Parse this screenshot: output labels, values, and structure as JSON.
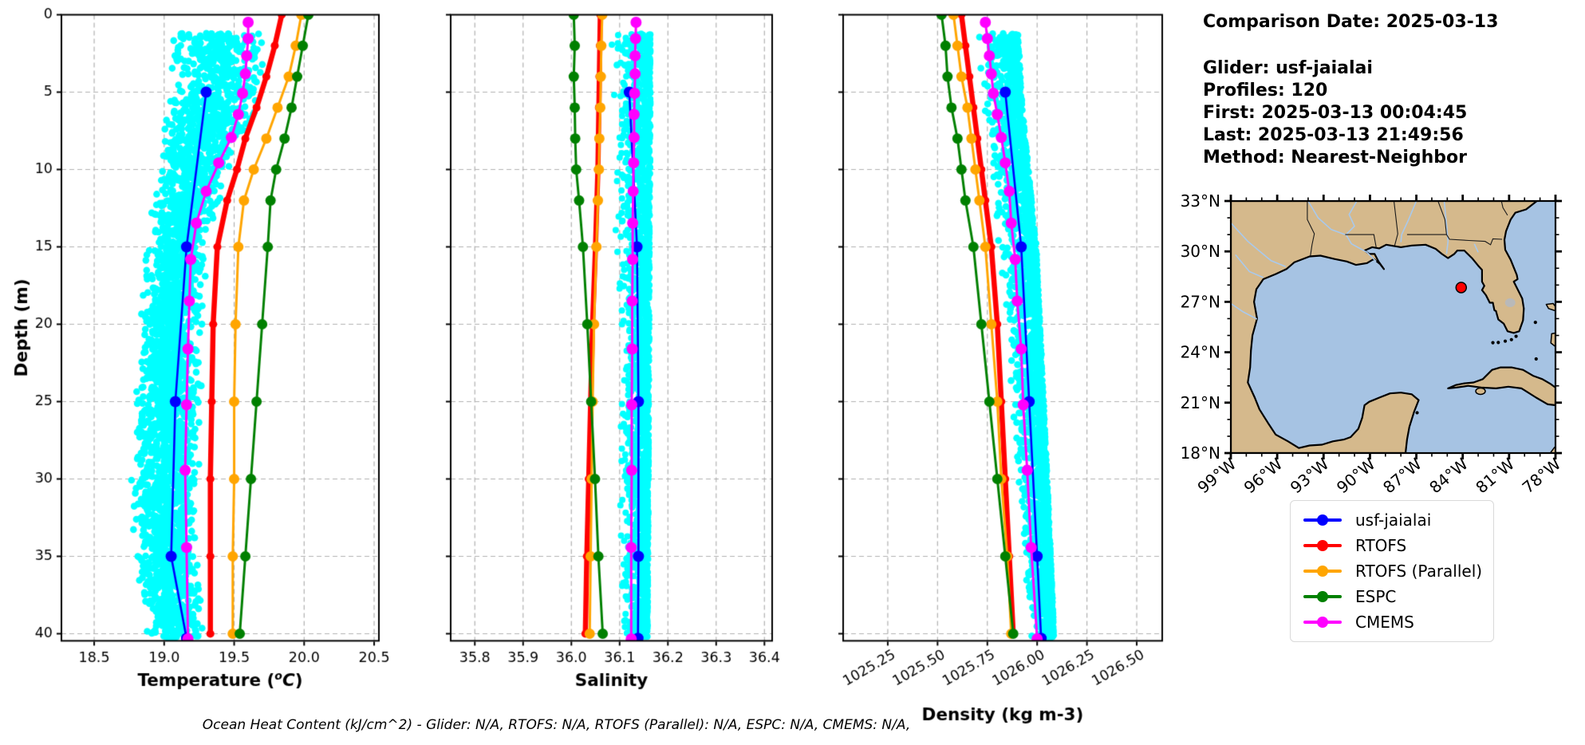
{
  "info_panel": {
    "title": "Comparison Date: 2025-03-13",
    "lines": [
      "Glider: usf-jaialai",
      "Profiles: 120",
      "First: 2025-03-13 00:04:45",
      "Last: 2025-03-13 21:49:56",
      "Method: Nearest-Neighbor"
    ]
  },
  "footer": {
    "text": "Ocean Heat Content (kJ/cm^2) - Glider: N/A,  RTOFS: N/A,  RTOFS (Parallel): N/A,  ESPC: N/A,  CMEMS: N/A,"
  },
  "legend": {
    "items": [
      {
        "label": "usf-jaialai",
        "color": "#0000ff"
      },
      {
        "label": "RTOFS",
        "color": "#ff0000"
      },
      {
        "label": "RTOFS (Parallel)",
        "color": "#ffa500"
      },
      {
        "label": "ESPC",
        "color": "#008000"
      },
      {
        "label": "CMEMS",
        "color": "#ff00ff"
      }
    ]
  },
  "map": {
    "extent": {
      "west_lon": -99,
      "east_lon": -78,
      "south_lat": 18,
      "north_lat": 33
    },
    "lat_ticks": [
      {
        "label": "33°N",
        "value": 33
      },
      {
        "label": "30°N",
        "value": 30
      },
      {
        "label": "27°N",
        "value": 27
      },
      {
        "label": "24°N",
        "value": 24
      },
      {
        "label": "21°N",
        "value": 21
      },
      {
        "label": "18°N",
        "value": 18
      }
    ],
    "lon_ticks": [
      {
        "label": "99°W",
        "value": -99
      },
      {
        "label": "96°W",
        "value": -96
      },
      {
        "label": "93°W",
        "value": -93
      },
      {
        "label": "90°W",
        "value": -90
      },
      {
        "label": "87°W",
        "value": -87
      },
      {
        "label": "84°W",
        "value": -84
      },
      {
        "label": "81°W",
        "value": -81
      },
      {
        "label": "78°W",
        "value": -78
      }
    ],
    "marker": {
      "lon": -84.1,
      "lat": 27.85,
      "color": "#ff0000"
    },
    "land_color": "#d5b98c",
    "ocean_color": "#a6c3e3",
    "lake_color": "#b9b9b9"
  },
  "chart_data": [
    {
      "type": "line",
      "title": "",
      "xlabel": "Temperature (°C)",
      "ylabel": "Depth (m)",
      "xlim": [
        18.266,
        20.534
      ],
      "ylim": [
        40.46,
        0
      ],
      "xticks": [
        18.5,
        19.0,
        19.5,
        20.0,
        20.5
      ],
      "xtick_labels": [
        "18.5",
        "19.0",
        "19.5",
        "20.0",
        "20.5"
      ],
      "yticks": [
        0,
        5,
        10,
        15,
        20,
        25,
        30,
        35,
        40
      ],
      "ytick_labels": [
        "0",
        "5",
        "10",
        "15",
        "20",
        "25",
        "30",
        "35",
        "40"
      ],
      "show_ytick_labels": true,
      "xtick_rotation": 0,
      "grid": true,
      "series": [
        {
          "name": "usf-jaialai",
          "color": "#0000ff",
          "line_width": 2.6,
          "marker_size": 7,
          "depths": [
            5,
            15,
            25,
            35,
            40.3
          ],
          "values": [
            19.3,
            19.16,
            19.08,
            19.05,
            19.16
          ]
        },
        {
          "name": "RTOFS",
          "color": "#ff0000",
          "line_width": 6.5,
          "marker_size": 5,
          "depths": [
            0,
            2,
            4,
            6,
            8,
            10,
            12,
            15,
            20,
            25,
            30,
            35,
            40
          ],
          "values": [
            19.84,
            19.79,
            19.73,
            19.66,
            19.58,
            19.52,
            19.45,
            19.38,
            19.35,
            19.34,
            19.33,
            19.33,
            19.33
          ]
        },
        {
          "name": "RTOFS (Parallel)",
          "color": "#ffa500",
          "line_width": 3,
          "marker_size": 6.5,
          "depths": [
            0,
            2,
            4,
            6,
            8,
            10,
            12,
            15,
            20,
            25,
            30,
            35,
            40
          ],
          "values": [
            19.98,
            19.94,
            19.89,
            19.81,
            19.73,
            19.64,
            19.57,
            19.53,
            19.51,
            19.5,
            19.5,
            19.49,
            19.49
          ]
        },
        {
          "name": "ESPC",
          "color": "#008000",
          "line_width": 3,
          "marker_size": 6.5,
          "depths": [
            0,
            2,
            4,
            6,
            8,
            10,
            12,
            15,
            20,
            25,
            30,
            35,
            40
          ],
          "values": [
            20.03,
            19.99,
            19.95,
            19.91,
            19.86,
            19.8,
            19.76,
            19.74,
            19.7,
            19.66,
            19.62,
            19.58,
            19.54
          ]
        },
        {
          "name": "CMEMS",
          "color": "#ff00ff",
          "line_width": 3,
          "marker_size": 7,
          "depths": [
            0.49,
            1.54,
            2.65,
            3.82,
            5.08,
            6.44,
            7.93,
            9.57,
            11.41,
            13.47,
            15.81,
            18.5,
            21.6,
            25.21,
            29.44,
            34.43,
            40.34
          ],
          "values": [
            19.6,
            19.6,
            19.59,
            19.58,
            19.56,
            19.53,
            19.48,
            19.39,
            19.3,
            19.23,
            19.19,
            19.18,
            19.17,
            19.16,
            19.15,
            19.16,
            19.17
          ]
        }
      ],
      "scatter": {
        "name": "glider raw points",
        "color": "#00ffff",
        "count": 3000,
        "bias": "center",
        "depth_min": 1.2,
        "depth_max": 40.3,
        "envelope": {
          "depths": [
            1.2,
            5,
            7,
            10,
            15,
            25,
            32,
            36,
            40.3
          ],
          "left": [
            19.05,
            19.0,
            18.98,
            18.94,
            18.87,
            18.78,
            18.76,
            18.8,
            18.87
          ],
          "right": [
            19.74,
            19.72,
            19.66,
            19.46,
            19.31,
            19.27,
            19.24,
            19.26,
            19.29
          ]
        }
      }
    },
    {
      "type": "line",
      "title": "",
      "xlabel": "Salinity",
      "ylabel": "",
      "xlim": [
        35.75,
        36.416
      ],
      "ylim": [
        40.46,
        0
      ],
      "xticks": [
        35.8,
        35.9,
        36.0,
        36.1,
        36.2,
        36.3,
        36.4
      ],
      "xtick_labels": [
        "35.8",
        "35.9",
        "36.0",
        "36.1",
        "36.2",
        "36.3",
        "36.4"
      ],
      "yticks": [
        0,
        5,
        10,
        15,
        20,
        25,
        30,
        35,
        40
      ],
      "ytick_labels": [
        "0",
        "5",
        "10",
        "15",
        "20",
        "25",
        "30",
        "35",
        "40"
      ],
      "show_ytick_labels": false,
      "xtick_rotation": 0,
      "grid": true,
      "series": [
        {
          "name": "usf-jaialai",
          "color": "#0000ff",
          "line_width": 2.6,
          "marker_size": 7,
          "depths": [
            5,
            15,
            25,
            35,
            40.3
          ],
          "values": [
            36.12,
            36.136,
            36.139,
            36.139,
            36.138
          ]
        },
        {
          "name": "RTOFS",
          "color": "#ff0000",
          "line_width": 6.5,
          "marker_size": 5,
          "depths": [
            0,
            2,
            4,
            6,
            8,
            10,
            12,
            15,
            20,
            25,
            30,
            35,
            40
          ],
          "values": [
            36.06,
            36.059,
            36.058,
            36.057,
            36.056,
            36.055,
            36.053,
            36.05,
            36.044,
            36.04,
            36.036,
            36.032,
            36.029
          ]
        },
        {
          "name": "RTOFS (Parallel)",
          "color": "#ffa500",
          "line_width": 3,
          "marker_size": 6.5,
          "depths": [
            0,
            2,
            4,
            6,
            8,
            10,
            12,
            15,
            20,
            25,
            30,
            35,
            40
          ],
          "values": [
            36.064,
            36.062,
            36.061,
            36.06,
            36.058,
            36.057,
            36.055,
            36.052,
            36.047,
            36.044,
            36.042,
            36.04,
            36.038
          ]
        },
        {
          "name": "ESPC",
          "color": "#008000",
          "line_width": 3,
          "marker_size": 6.5,
          "depths": [
            0,
            2,
            4,
            6,
            8,
            10,
            12,
            15,
            20,
            25,
            30,
            35,
            40
          ],
          "values": [
            36.005,
            36.007,
            36.005,
            36.007,
            36.008,
            36.01,
            36.016,
            36.024,
            36.033,
            36.041,
            36.049,
            36.056,
            36.065
          ]
        },
        {
          "name": "CMEMS",
          "color": "#ff00ff",
          "line_width": 3,
          "marker_size": 7,
          "depths": [
            0.49,
            1.54,
            2.65,
            3.82,
            5.08,
            6.44,
            7.93,
            9.57,
            11.41,
            13.47,
            15.81,
            18.5,
            21.6,
            25.21,
            29.44,
            34.43,
            40.34
          ],
          "values": [
            36.134,
            36.133,
            36.132,
            36.132,
            36.131,
            36.13,
            36.13,
            36.129,
            36.128,
            36.127,
            36.127,
            36.126,
            36.126,
            36.125,
            36.125,
            36.124,
            36.124
          ]
        }
      ],
      "scatter": {
        "name": "glider raw points",
        "color": "#00ffff",
        "count": 1900,
        "bias": "right",
        "depth_min": 1.2,
        "depth_max": 40.3,
        "envelope": {
          "depths": [
            1.2,
            6,
            15,
            30,
            40.3
          ],
          "left": [
            36.072,
            36.08,
            36.09,
            36.098,
            36.103
          ],
          "right": [
            36.164,
            36.164,
            36.162,
            36.16,
            36.158
          ]
        }
      }
    },
    {
      "type": "line",
      "title": "",
      "xlabel": "Density (kg m-3)",
      "ylabel": "",
      "xlim": [
        1025.026,
        1026.628
      ],
      "ylim": [
        40.46,
        0
      ],
      "xticks": [
        1025.25,
        1025.5,
        1025.75,
        1026.0,
        1026.25,
        1026.5
      ],
      "xtick_labels": [
        "1025.25",
        "1025.50",
        "1025.75",
        "1026.00",
        "1026.25",
        "1026.50"
      ],
      "yticks": [
        0,
        5,
        10,
        15,
        20,
        25,
        30,
        35,
        40
      ],
      "ytick_labels": [
        "0",
        "5",
        "10",
        "15",
        "20",
        "25",
        "30",
        "35",
        "40"
      ],
      "show_ytick_labels": false,
      "xtick_rotation": 30,
      "grid": true,
      "series": [
        {
          "name": "usf-jaialai",
          "color": "#0000ff",
          "line_width": 2.6,
          "marker_size": 7,
          "depths": [
            5,
            15,
            25,
            35,
            40.3
          ],
          "values": [
            1025.84,
            1025.92,
            1025.96,
            1026.0,
            1026.02
          ]
        },
        {
          "name": "RTOFS",
          "color": "#ff0000",
          "line_width": 6.5,
          "marker_size": 5,
          "depths": [
            0,
            2,
            4,
            6,
            8,
            10,
            12,
            15,
            20,
            25,
            30,
            35,
            40
          ],
          "values": [
            1025.62,
            1025.64,
            1025.66,
            1025.68,
            1025.7,
            1025.72,
            1025.74,
            1025.77,
            1025.8,
            1025.82,
            1025.84,
            1025.86,
            1025.88
          ]
        },
        {
          "name": "RTOFS (Parallel)",
          "color": "#ffa500",
          "line_width": 3,
          "marker_size": 6.5,
          "depths": [
            0,
            2,
            4,
            6,
            8,
            10,
            12,
            15,
            20,
            25,
            30,
            35,
            40
          ],
          "values": [
            1025.58,
            1025.6,
            1025.62,
            1025.65,
            1025.67,
            1025.69,
            1025.71,
            1025.74,
            1025.77,
            1025.8,
            1025.82,
            1025.85,
            1025.87
          ]
        },
        {
          "name": "ESPC",
          "color": "#008000",
          "line_width": 3,
          "marker_size": 6.5,
          "depths": [
            0,
            2,
            4,
            6,
            8,
            10,
            12,
            15,
            20,
            25,
            30,
            35,
            40
          ],
          "values": [
            1025.52,
            1025.54,
            1025.55,
            1025.57,
            1025.6,
            1025.62,
            1025.64,
            1025.68,
            1025.72,
            1025.76,
            1025.8,
            1025.84,
            1025.88
          ]
        },
        {
          "name": "CMEMS",
          "color": "#ff00ff",
          "line_width": 3,
          "marker_size": 7,
          "depths": [
            0.49,
            1.54,
            2.65,
            3.82,
            5.08,
            6.44,
            7.93,
            9.57,
            11.41,
            13.47,
            15.81,
            18.5,
            21.6,
            25.21,
            29.44,
            34.43,
            40.34
          ],
          "values": [
            1025.74,
            1025.75,
            1025.76,
            1025.77,
            1025.78,
            1025.8,
            1025.82,
            1025.84,
            1025.86,
            1025.87,
            1025.89,
            1025.9,
            1025.92,
            1025.93,
            1025.95,
            1025.97,
            1026.0
          ]
        }
      ],
      "scatter": {
        "name": "glider raw points",
        "color": "#00ffff",
        "count": 2400,
        "bias": "right",
        "depth_min": 1.2,
        "depth_max": 40.3,
        "envelope": {
          "depths": [
            1.2,
            6,
            15,
            30,
            40.3
          ],
          "left": [
            1025.665,
            1025.715,
            1025.8,
            1025.9,
            1025.955
          ],
          "right": [
            1025.905,
            1025.925,
            1025.995,
            1026.05,
            1026.085
          ]
        }
      }
    }
  ]
}
